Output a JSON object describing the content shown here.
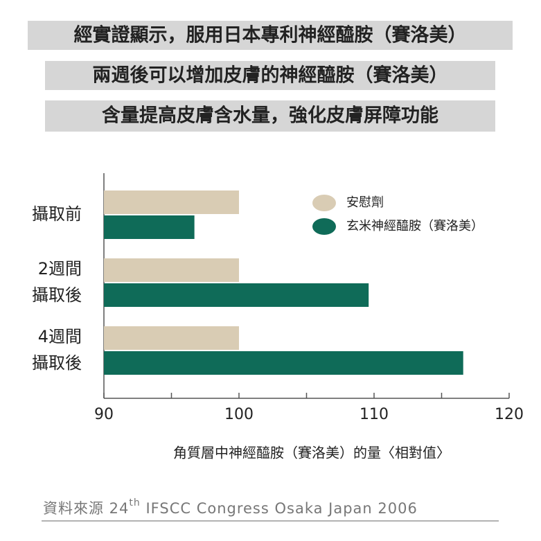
{
  "chart_data": {
    "type": "bar",
    "orientation": "horizontal",
    "title_lines": [
      "經實證顯示，服用日本專利神經醯胺（賽洛美）",
      "兩週後可以增加皮膚的神經醯胺（賽洛美）",
      "含量提高皮膚含水量，強化皮膚屏障功能"
    ],
    "categories": [
      [
        "攝取前"
      ],
      [
        "2週間",
        "攝取後"
      ],
      [
        "4週間",
        "攝取後"
      ]
    ],
    "series": [
      {
        "name": "安慰劑",
        "color": "#d9ccb4",
        "values": [
          100,
          100,
          100
        ]
      },
      {
        "name": "玄米神經醯胺（賽洛美）",
        "color": "#0f6b58",
        "values": [
          96.7,
          109.6,
          116.6
        ]
      }
    ],
    "xlim": [
      90,
      120
    ],
    "xticks": [
      90,
      100,
      110,
      120
    ],
    "minor_xticks": [
      95,
      105,
      115
    ],
    "xlabel": "角質層中神經醯胺（賽洛美）的量〈相對值〉",
    "source": {
      "prefix": "資料來源 24",
      "sup": "th",
      "suffix": " IFSCC Congress Osaka Japan 2006"
    }
  }
}
